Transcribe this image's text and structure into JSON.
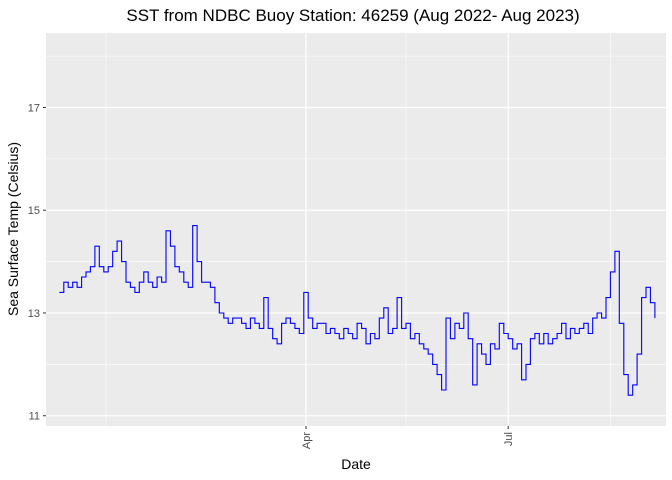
{
  "chart_data": {
    "type": "line",
    "title": "SST from NDBC Buoy Station: 46259 (Aug 2022- Aug 2023)",
    "xlabel": "Date",
    "ylabel": "Sea Surface Temp (Celsius)",
    "x_ticks": [
      "Apr",
      "Jul"
    ],
    "y_ticks": [
      11,
      13,
      15,
      17
    ],
    "ylim": [
      10.8,
      18.45
    ],
    "xlim": [
      "2022-12-05",
      "2023-09-10"
    ],
    "grid": true,
    "legend": "none",
    "colors": {
      "line": "#0000ff",
      "panel": "#ebebeb",
      "grid": "#ffffff"
    },
    "series": [
      {
        "x": [
          "2022-12-11",
          "2022-12-13",
          "2022-12-15",
          "2022-12-17",
          "2022-12-19",
          "2022-12-21",
          "2022-12-23",
          "2022-12-25",
          "2022-12-27",
          "2022-12-29",
          "2022-12-31",
          "2023-01-02",
          "2023-01-04",
          "2023-01-06",
          "2023-01-08",
          "2023-01-10",
          "2023-01-12",
          "2023-01-14",
          "2023-01-16",
          "2023-01-18",
          "2023-01-20",
          "2023-01-22",
          "2023-01-24",
          "2023-01-26",
          "2023-01-28",
          "2023-01-30",
          "2023-02-01",
          "2023-02-03",
          "2023-02-05",
          "2023-02-07",
          "2023-02-09",
          "2023-02-11",
          "2023-02-13",
          "2023-02-15",
          "2023-02-17",
          "2023-02-19",
          "2023-02-21",
          "2023-02-23",
          "2023-02-25",
          "2023-02-27",
          "2023-03-01",
          "2023-03-03",
          "2023-03-05",
          "2023-03-07",
          "2023-03-09",
          "2023-03-11",
          "2023-03-13",
          "2023-03-15",
          "2023-03-17",
          "2023-03-19",
          "2023-03-21",
          "2023-03-23",
          "2023-03-25",
          "2023-03-27",
          "2023-03-29",
          "2023-03-31",
          "2023-04-02",
          "2023-04-04",
          "2023-04-06",
          "2023-04-08",
          "2023-04-10",
          "2023-04-12",
          "2023-04-14",
          "2023-04-16",
          "2023-04-18",
          "2023-04-20",
          "2023-04-22",
          "2023-04-24",
          "2023-04-26",
          "2023-04-28",
          "2023-04-30",
          "2023-05-02",
          "2023-05-04",
          "2023-05-06",
          "2023-05-08",
          "2023-05-10",
          "2023-05-12",
          "2023-05-14",
          "2023-05-16",
          "2023-05-18",
          "2023-05-20",
          "2023-05-22",
          "2023-05-24",
          "2023-05-26",
          "2023-05-28",
          "2023-05-30",
          "2023-06-01",
          "2023-06-03",
          "2023-06-05",
          "2023-06-07",
          "2023-06-09",
          "2023-06-11",
          "2023-06-13",
          "2023-06-15",
          "2023-06-17",
          "2023-06-19",
          "2023-06-21",
          "2023-06-23",
          "2023-06-25",
          "2023-06-27",
          "2023-06-29",
          "2023-07-01",
          "2023-07-03",
          "2023-07-05",
          "2023-07-07",
          "2023-07-09",
          "2023-07-11",
          "2023-07-13",
          "2023-07-15",
          "2023-07-17",
          "2023-07-19",
          "2023-07-21",
          "2023-07-23",
          "2023-07-25",
          "2023-07-27",
          "2023-07-29",
          "2023-07-31",
          "2023-08-02",
          "2023-08-04",
          "2023-08-06",
          "2023-08-08",
          "2023-08-10",
          "2023-08-12",
          "2023-08-14",
          "2023-08-16",
          "2023-08-18",
          "2023-08-20",
          "2023-08-22",
          "2023-08-24",
          "2023-08-26",
          "2023-08-28",
          "2023-08-30",
          "2023-09-01",
          "2023-09-03",
          "2023-09-05"
        ],
        "y": [
          13.4,
          13.6,
          13.5,
          13.6,
          13.5,
          13.7,
          13.8,
          13.9,
          14.3,
          13.9,
          13.8,
          13.9,
          14.2,
          14.4,
          14.0,
          13.6,
          13.5,
          13.4,
          13.6,
          13.8,
          13.6,
          13.5,
          13.7,
          13.6,
          14.6,
          14.3,
          13.9,
          13.8,
          13.6,
          13.5,
          14.7,
          14.0,
          13.6,
          13.6,
          13.5,
          13.2,
          13.0,
          12.9,
          12.8,
          12.9,
          12.9,
          12.8,
          12.7,
          12.9,
          12.8,
          12.7,
          13.3,
          12.7,
          12.5,
          12.4,
          12.8,
          12.9,
          12.8,
          12.7,
          12.6,
          13.4,
          12.9,
          12.7,
          12.8,
          12.8,
          12.6,
          12.7,
          12.6,
          12.5,
          12.7,
          12.6,
          12.5,
          12.8,
          12.7,
          12.4,
          12.6,
          12.5,
          12.9,
          13.1,
          12.6,
          12.7,
          13.3,
          12.7,
          12.8,
          12.5,
          12.6,
          12.4,
          12.3,
          12.2,
          12.0,
          11.8,
          11.5,
          12.9,
          12.5,
          12.8,
          12.7,
          13.0,
          12.5,
          11.6,
          12.4,
          12.2,
          12.0,
          12.4,
          12.3,
          12.8,
          12.6,
          12.5,
          12.3,
          12.4,
          11.7,
          12.0,
          12.5,
          12.6,
          12.4,
          12.6,
          12.4,
          12.5,
          12.6,
          12.8,
          12.5,
          12.7,
          12.6,
          12.7,
          12.8,
          12.6,
          12.9,
          13.0,
          12.9,
          13.3,
          13.8,
          14.2,
          12.8,
          11.8,
          11.4,
          11.6,
          12.2,
          13.3,
          13.5,
          13.2,
          12.9
        ]
      }
    ]
  }
}
